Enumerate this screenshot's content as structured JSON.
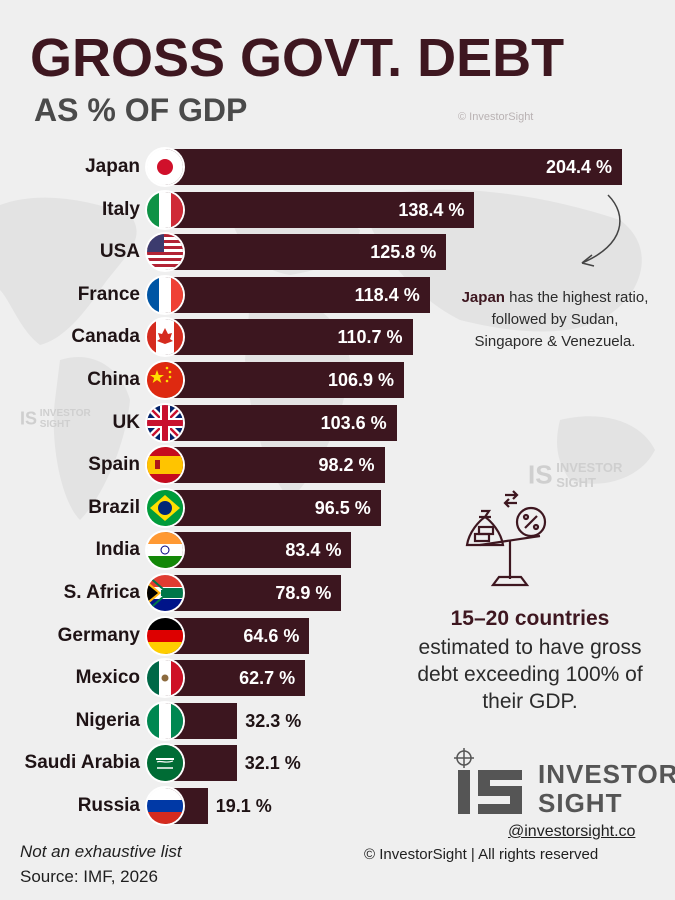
{
  "title": "GROSS GOVT. DEBT",
  "subtitle": "AS % OF GDP",
  "watermark": "© InvestorSight",
  "logo_small": [
    "INVESTOR",
    "SIGHT"
  ],
  "chart_data": {
    "type": "bar",
    "orientation": "horizontal",
    "categories": [
      "Japan",
      "Italy",
      "USA",
      "France",
      "Canada",
      "China",
      "UK",
      "Spain",
      "Brazil",
      "India",
      "S. Africa",
      "Germany",
      "Mexico",
      "Nigeria",
      "Saudi Arabia",
      "Russia"
    ],
    "values": [
      204.4,
      138.4,
      125.8,
      118.4,
      110.7,
      106.9,
      103.6,
      98.2,
      96.5,
      83.4,
      78.9,
      64.6,
      62.7,
      32.3,
      32.1,
      19.1
    ],
    "labels": [
      "204.4 %",
      "138.4 %",
      "125.8 %",
      "118.4 %",
      "110.7 %",
      "106.9 %",
      "103.6 %",
      "98.2 %",
      "96.5 %",
      "83.4 %",
      "78.9 %",
      "64.6 %",
      "62.7 %",
      "32.3 %",
      "32.1 %",
      "19.1 %"
    ],
    "flags": [
      "japan-flag",
      "italy-flag",
      "usa-flag",
      "france-flag",
      "canada-flag",
      "china-flag",
      "uk-flag",
      "spain-flag",
      "brazil-flag",
      "india-flag",
      "south-africa-flag",
      "germany-flag",
      "mexico-flag",
      "nigeria-flag",
      "saudi-arabia-flag",
      "russia-flag"
    ],
    "bar_color": "#3c161f"
  },
  "note": {
    "highlight": "Japan",
    "line1_rest": " has the highest ratio,",
    "line2": "followed by  Sudan,",
    "line3": "Singapore & Venezuela."
  },
  "callout": {
    "headline": "15–20 countries",
    "line1": "estimated to have gross",
    "line2": "debt exceeding 100% of",
    "line3": "their GDP."
  },
  "brand": {
    "line1": "INVESTOR",
    "line2": "SIGHT"
  },
  "handle": "@investorsight.co",
  "rights": "© InvestorSight |  All rights reserved",
  "footer": {
    "note": "Not an exhaustive list",
    "source": "Source: IMF, 2026"
  },
  "colors": {
    "accent": "#3e1720",
    "background": "#efefef"
  }
}
